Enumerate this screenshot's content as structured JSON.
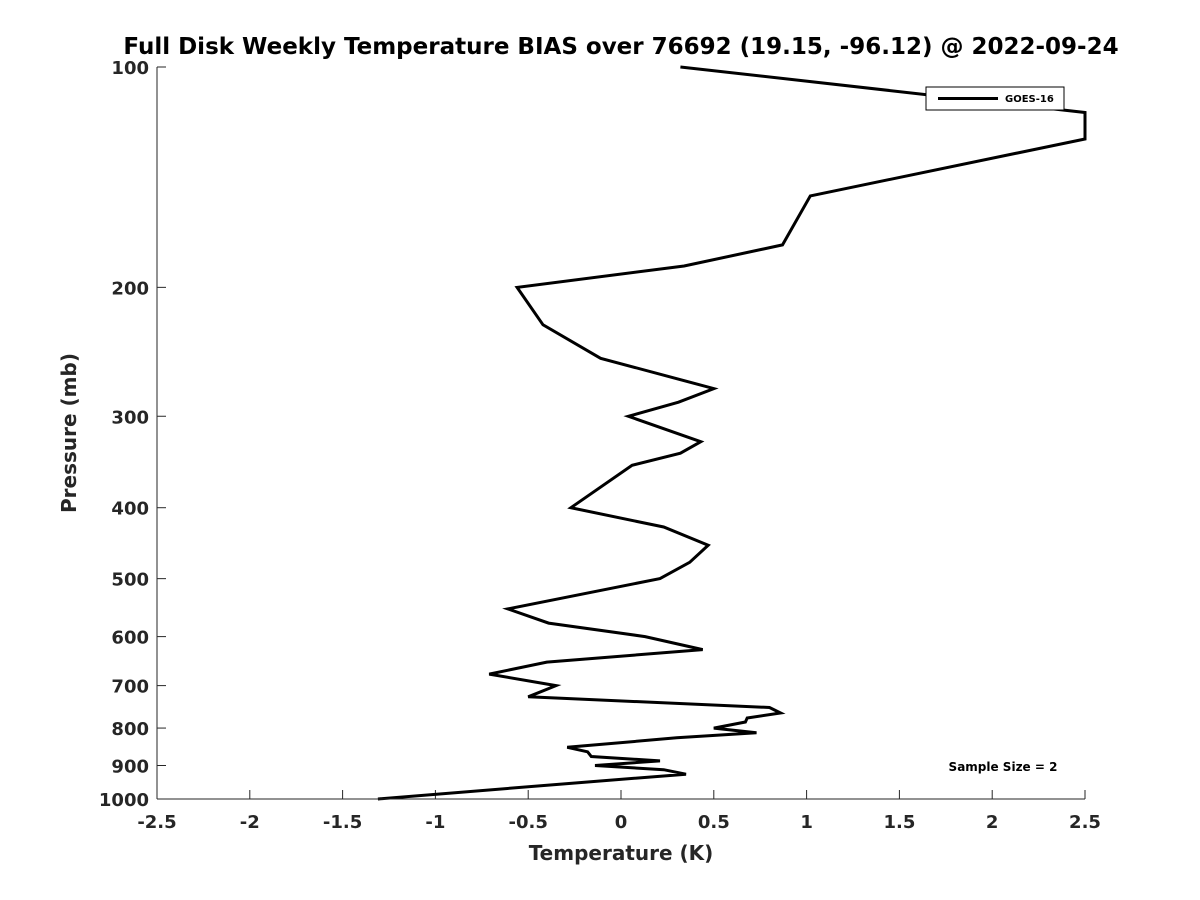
{
  "chart_data": {
    "type": "line",
    "title": "Full Disk Weekly Temperature BIAS over 76692 (19.15, -96.12) @ 2022-09-24",
    "xlabel": "Temperature (K)",
    "ylabel": "Pressure (mb)",
    "xlim": [
      -2.5,
      2.5
    ],
    "ylim": [
      1000,
      100
    ],
    "yscale": "log",
    "yreversed": true,
    "x_ticks": [
      -2.5,
      -2,
      -1.5,
      -1,
      -0.5,
      0,
      0.5,
      1,
      1.5,
      2,
      2.5
    ],
    "x_tick_labels": [
      "-2.5",
      "-2",
      "-1.5",
      "-1",
      "-0.5",
      "0",
      "0.5",
      "1",
      "1.5",
      "2",
      "2.5"
    ],
    "y_ticks": [
      100,
      200,
      300,
      400,
      500,
      600,
      700,
      800,
      900,
      1000
    ],
    "y_tick_labels": [
      "100",
      "200",
      "300",
      "400",
      "500",
      "600",
      "700",
      "800",
      "900",
      "1000"
    ],
    "grid": false,
    "legend": {
      "position": "top-right",
      "entries": [
        "GOES-16"
      ]
    },
    "annotation": "Sample Size = 2",
    "series": [
      {
        "name": "GOES-16",
        "color": "#000000",
        "points": [
          [
            0.32,
            100
          ],
          [
            2.5,
            115.4
          ],
          [
            2.5,
            125.4
          ],
          [
            1.02,
            150
          ],
          [
            0.87,
            175
          ],
          [
            0.34,
            187
          ],
          [
            -0.56,
            200
          ],
          [
            -0.42,
            225
          ],
          [
            -0.11,
            250
          ],
          [
            0.5,
            275
          ],
          [
            0.31,
            287
          ],
          [
            0.04,
            300
          ],
          [
            0.43,
            325
          ],
          [
            0.32,
            337
          ],
          [
            0.06,
            350
          ],
          [
            -0.27,
            400
          ],
          [
            0.23,
            425
          ],
          [
            0.47,
            450
          ],
          [
            0.37,
            475
          ],
          [
            0.21,
            500
          ],
          [
            -0.61,
            550
          ],
          [
            -0.39,
            575
          ],
          [
            0.13,
            600
          ],
          [
            0.44,
            625
          ],
          [
            -0.4,
            650
          ],
          [
            -0.71,
            675
          ],
          [
            -0.35,
            700
          ],
          [
            -0.5,
            725
          ],
          [
            0.8,
            750
          ],
          [
            0.86,
            763
          ],
          [
            0.68,
            775
          ],
          [
            0.67,
            785
          ],
          [
            0.5,
            800
          ],
          [
            0.73,
            812
          ],
          [
            0.3,
            825
          ],
          [
            -0.29,
            850
          ],
          [
            -0.18,
            862
          ],
          [
            -0.16,
            875
          ],
          [
            0.21,
            887
          ],
          [
            -0.14,
            900
          ],
          [
            0.23,
            912
          ],
          [
            0.35,
            925
          ],
          [
            -0.23,
            950
          ],
          [
            -1.31,
            1000
          ]
        ]
      }
    ]
  }
}
